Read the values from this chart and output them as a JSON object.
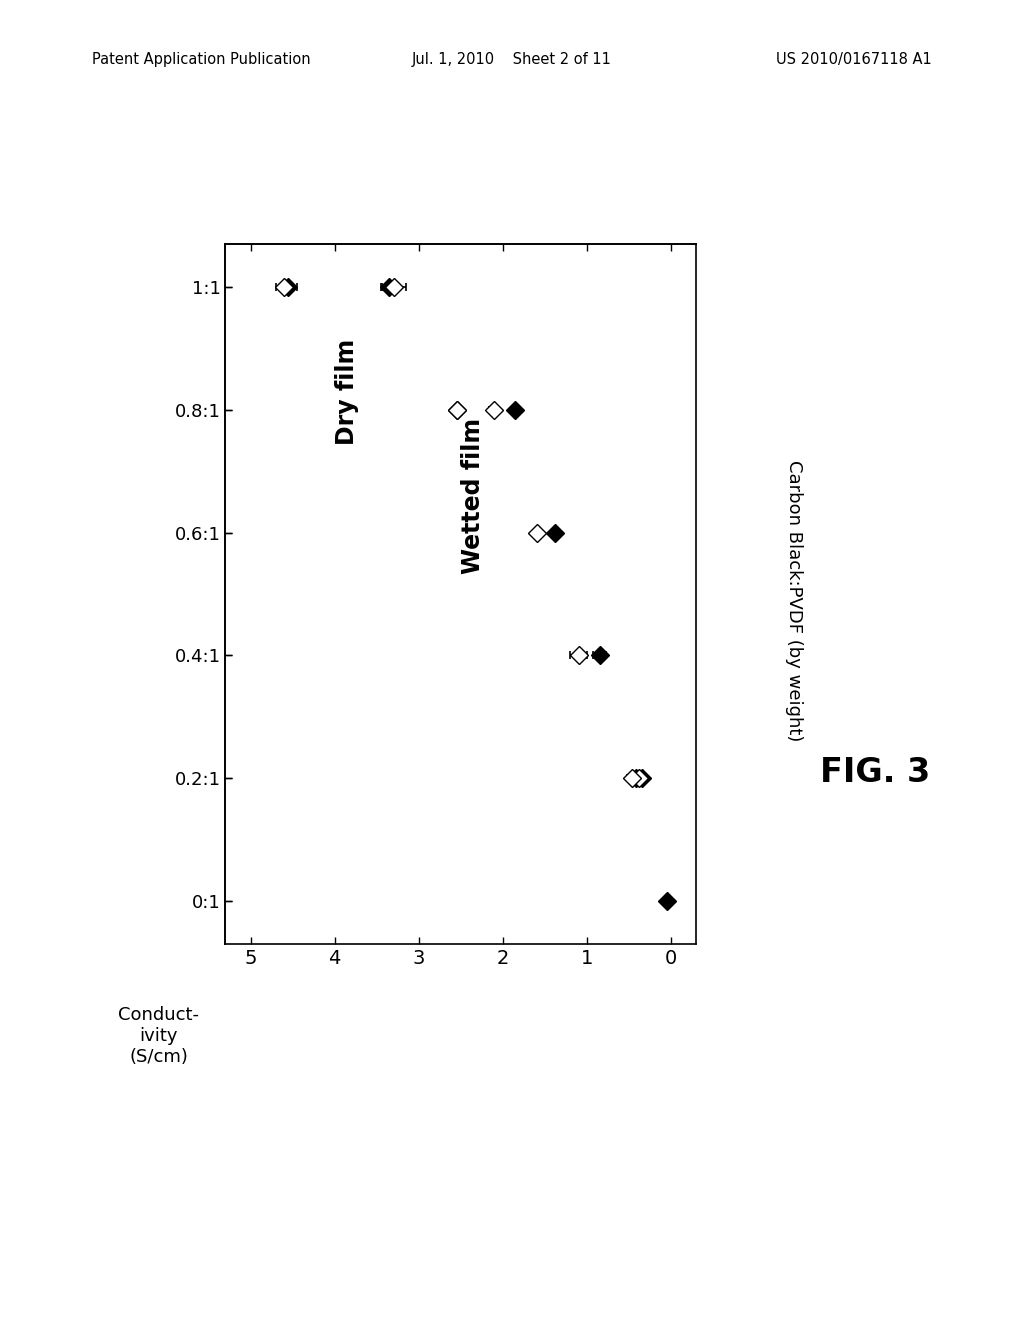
{
  "header_left": "Patent Application Publication",
  "header_center": "Jul. 1, 2010    Sheet 2 of 11",
  "header_right": "US 2010/0167118 A1",
  "fig_label": "FIG. 3",
  "conductivity_label": "Conduct-\nivity\n(S/cm)",
  "cb_pvdf_label": "Carbon Black:PVDF (by weight)",
  "cb_ticks": [
    0,
    1,
    2,
    3,
    4,
    5
  ],
  "cb_ticklabels": [
    "0:1",
    "0.2:1",
    "0.4:1",
    "0.6:1",
    "0.8:1",
    "1:1"
  ],
  "cond_ticks": [
    0,
    1,
    2,
    3,
    4,
    5
  ],
  "cond_ticklabels": [
    "0",
    "1",
    "2",
    "3",
    "4",
    "5"
  ],
  "dry_film_label": "Dry film",
  "wetted_film_label": "Wetted film",
  "dry_cb": [
    0,
    1,
    1,
    2,
    3,
    4,
    4,
    5,
    5
  ],
  "dry_cond": [
    0.05,
    0.35,
    0.42,
    0.85,
    1.38,
    1.85,
    2.55,
    3.35,
    4.55
  ],
  "dry_err": [
    0,
    0.06,
    0.06,
    0.08,
    0,
    0,
    0,
    0.09,
    0.1
  ],
  "wet_cb": [
    1,
    1,
    2,
    3,
    4,
    4,
    5,
    5
  ],
  "wet_cond": [
    0.38,
    0.47,
    1.1,
    1.6,
    2.1,
    2.55,
    3.3,
    4.6
  ],
  "wet_err": [
    0.06,
    0.06,
    0.1,
    0,
    0.06,
    0,
    0.15,
    0.1
  ],
  "marker_size": 9,
  "background": "#ffffff"
}
